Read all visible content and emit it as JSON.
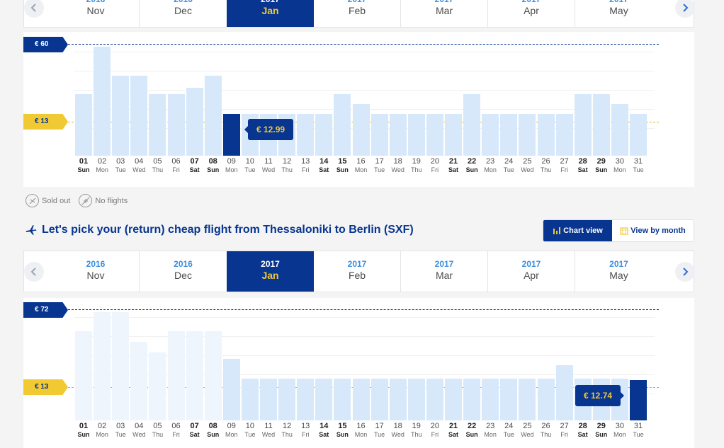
{
  "months_top": [
    {
      "year": "2016",
      "month": "Nov"
    },
    {
      "year": "2016",
      "month": "Dec"
    },
    {
      "year": "2017",
      "month": "Jan",
      "active": true
    },
    {
      "year": "2017",
      "month": "Feb"
    },
    {
      "year": "2017",
      "month": "Mar"
    },
    {
      "year": "2017",
      "month": "Apr"
    },
    {
      "year": "2017",
      "month": "May"
    }
  ],
  "months_bottom": [
    {
      "year": "2016",
      "month": "Nov"
    },
    {
      "year": "2016",
      "month": "Dec"
    },
    {
      "year": "2017",
      "month": "Jan",
      "active": true
    },
    {
      "year": "2017",
      "month": "Feb"
    },
    {
      "year": "2017",
      "month": "Mar"
    },
    {
      "year": "2017",
      "month": "Apr"
    },
    {
      "year": "2017",
      "month": "May"
    }
  ],
  "days": [
    {
      "num": "01",
      "name": "Sun",
      "bold": true
    },
    {
      "num": "02",
      "name": "Mon"
    },
    {
      "num": "03",
      "name": "Tue"
    },
    {
      "num": "04",
      "name": "Wed"
    },
    {
      "num": "05",
      "name": "Thu"
    },
    {
      "num": "06",
      "name": "Fri"
    },
    {
      "num": "07",
      "name": "Sat",
      "bold": true
    },
    {
      "num": "08",
      "name": "Sun",
      "bold": true
    },
    {
      "num": "09",
      "name": "Mon"
    },
    {
      "num": "10",
      "name": "Tue"
    },
    {
      "num": "11",
      "name": "Wed"
    },
    {
      "num": "12",
      "name": "Thu"
    },
    {
      "num": "13",
      "name": "Fri"
    },
    {
      "num": "14",
      "name": "Sat",
      "bold": true
    },
    {
      "num": "15",
      "name": "Sun",
      "bold": true
    },
    {
      "num": "16",
      "name": "Mon"
    },
    {
      "num": "17",
      "name": "Tue"
    },
    {
      "num": "18",
      "name": "Wed"
    },
    {
      "num": "19",
      "name": "Thu"
    },
    {
      "num": "20",
      "name": "Fri"
    },
    {
      "num": "21",
      "name": "Sat",
      "bold": true
    },
    {
      "num": "22",
      "name": "Sun",
      "bold": true
    },
    {
      "num": "23",
      "name": "Mon"
    },
    {
      "num": "24",
      "name": "Tue"
    },
    {
      "num": "25",
      "name": "Wed"
    },
    {
      "num": "26",
      "name": "Thu"
    },
    {
      "num": "27",
      "name": "Fri"
    },
    {
      "num": "28",
      "name": "Sat",
      "bold": true
    },
    {
      "num": "29",
      "name": "Sun",
      "bold": true
    },
    {
      "num": "30",
      "name": "Mon"
    },
    {
      "num": "31",
      "name": "Tue"
    }
  ],
  "outbound": {
    "max_label": "€ 60",
    "min_label": "€ 13",
    "tooltip": "€ 12.99",
    "chart_data": {
      "type": "bar",
      "max": 60,
      "min": 13,
      "values": [
        30,
        60,
        41,
        41,
        30,
        30,
        34,
        41,
        18,
        18,
        18,
        18,
        18,
        18,
        30,
        24,
        18,
        18,
        18,
        18,
        18,
        30,
        18,
        18,
        18,
        18,
        18,
        30,
        30,
        24,
        18
      ],
      "selected_index": 8
    }
  },
  "legend": {
    "sold_out": "Sold out",
    "no_flights": "No flights"
  },
  "return_heading": "Let's pick your (return) cheap flight from Thessaloniki to Berlin (SXF)",
  "view_toggle": {
    "chart_view": "Chart view",
    "view_by_month": "View by month"
  },
  "return": {
    "max_label": "€ 72",
    "min_label": "€ 13",
    "tooltip": "€ 12.74",
    "chart_data": {
      "type": "bar",
      "max": 72,
      "min": 13,
      "values": [
        56,
        72,
        72,
        48,
        40,
        56,
        56,
        56,
        35,
        20,
        20,
        20,
        20,
        20,
        20,
        20,
        20,
        20,
        20,
        20,
        20,
        20,
        20,
        20,
        20,
        20,
        30,
        20,
        20,
        20,
        19
      ],
      "faded_until": 8,
      "selected_index": 30
    }
  }
}
